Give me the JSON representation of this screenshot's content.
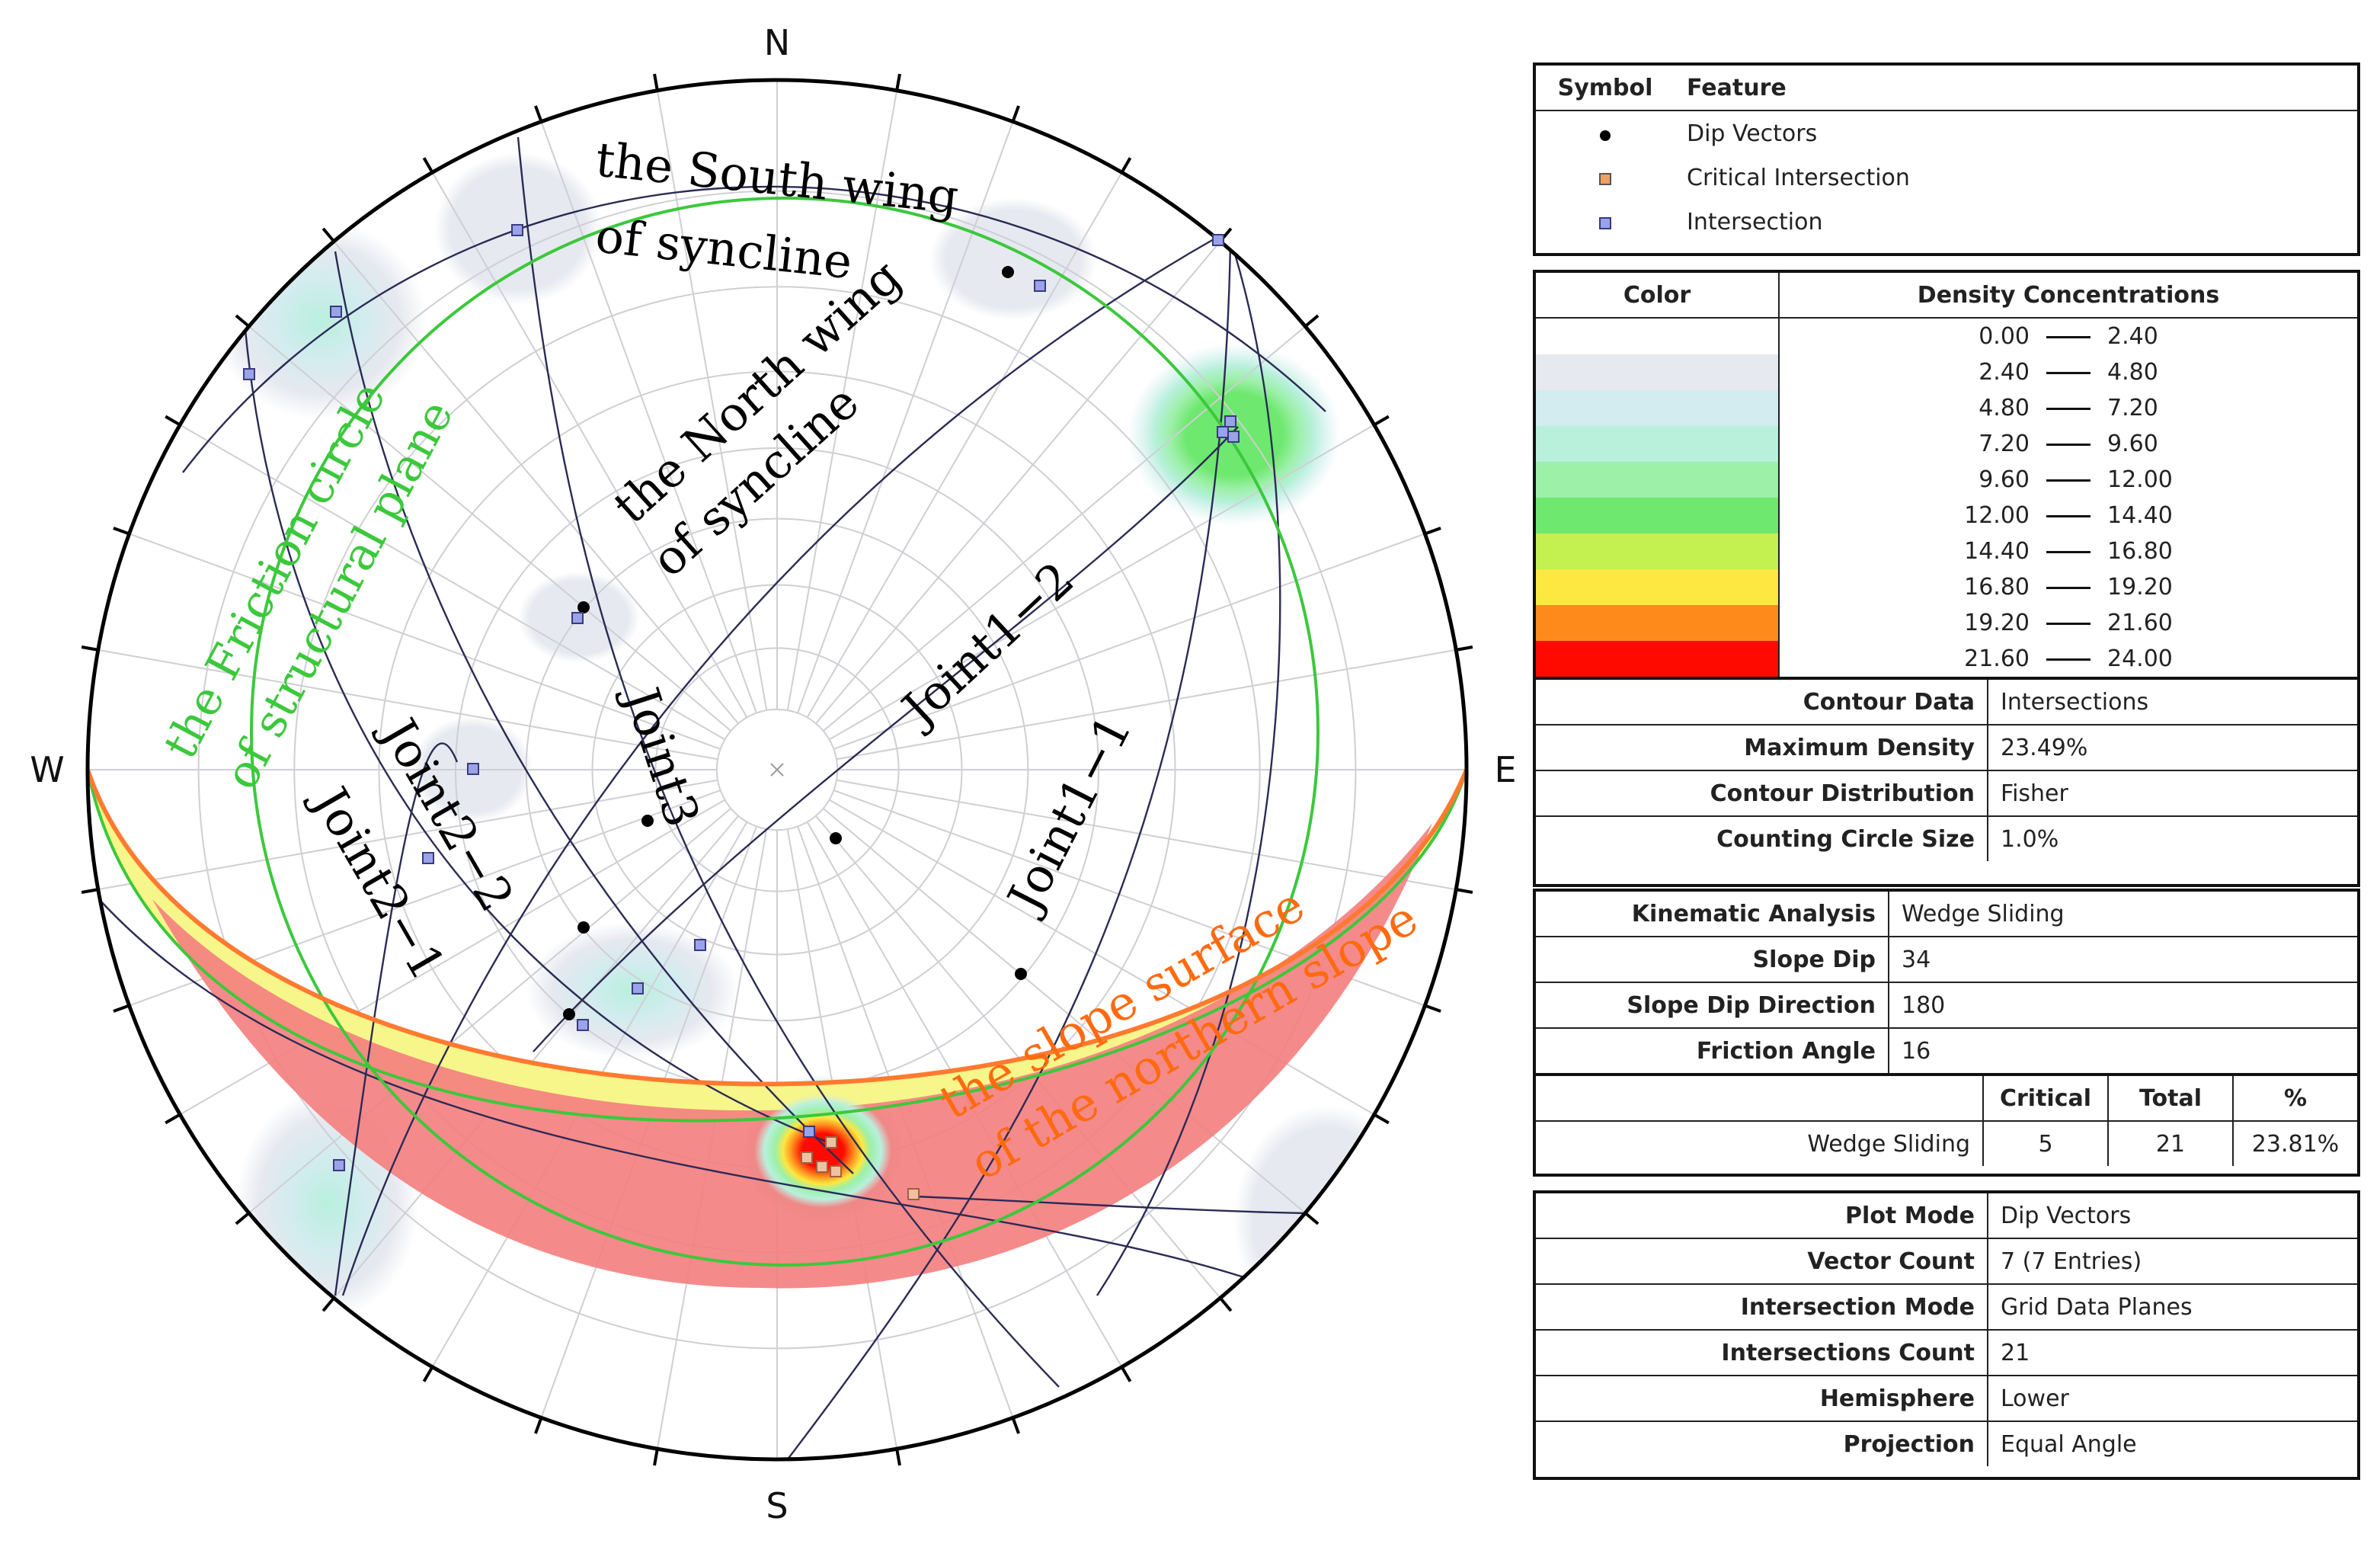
{
  "compass": {
    "north": "N",
    "south": "S",
    "west": "W",
    "east": "E"
  },
  "annotations": {
    "south_wing_line1": "the South wing",
    "south_wing_line2": "of syncline",
    "north_wing_line1": "the North wing",
    "north_wing_line2": "of syncline",
    "friction_line1": "the Friction circle",
    "friction_line2": "of structural plane",
    "joint1_2": "Joint1−2",
    "joint1_1": "Joint1−1",
    "joint3": "Joint3",
    "joint2_2": "Joint2−2",
    "joint2_1": "Joint2−1",
    "slope_line1": "the slope surface",
    "slope_line2": "of the northern slope"
  },
  "colors": {
    "great_circle": "#2b2b55",
    "friction_circle": "#3cc83c",
    "slope_outline": "#ff7a30",
    "critical_zone": "#f48080",
    "friction_band": "#f6f68a",
    "intersection": "#9aa3e8",
    "critical_intersection": "#f0a060",
    "annotation_green": "#3cc83c",
    "annotation_orange": "#ff6a10"
  },
  "legend": {
    "header_symbol": "Symbol",
    "header_feature": "Feature",
    "items": [
      {
        "icon": "dip-vector-dot",
        "label": "Dip Vectors"
      },
      {
        "icon": "critical-intersection-square",
        "label": "Critical Intersection"
      },
      {
        "icon": "intersection-square",
        "label": "Intersection"
      }
    ]
  },
  "density": {
    "header_color": "Color",
    "header_conc": "Density Concentrations",
    "rows": [
      {
        "from": "0.00",
        "to": "2.40",
        "color": "#ffffff"
      },
      {
        "from": "2.40",
        "to": "4.80",
        "color": "#e6e9ef"
      },
      {
        "from": "4.80",
        "to": "7.20",
        "color": "#d2ecef"
      },
      {
        "from": "7.20",
        "to": "9.60",
        "color": "#b8f0dc"
      },
      {
        "from": "9.60",
        "to": "12.00",
        "color": "#9cf0a8"
      },
      {
        "from": "12.00",
        "to": "14.40",
        "color": "#6ee86e"
      },
      {
        "from": "14.40",
        "to": "16.80",
        "color": "#c4f050"
      },
      {
        "from": "16.80",
        "to": "19.20",
        "color": "#fce840"
      },
      {
        "from": "19.20",
        "to": "21.60",
        "color": "#ff8a1c"
      },
      {
        "from": "21.60",
        "to": "24.00",
        "color": "#ff0a00"
      }
    ]
  },
  "contour": [
    {
      "label": "Contour Data",
      "value": "Intersections"
    },
    {
      "label": "Maximum Density",
      "value": "23.49%"
    },
    {
      "label": "Contour Distribution",
      "value": "Fisher"
    },
    {
      "label": "Counting Circle Size",
      "value": "1.0%"
    }
  ],
  "kinematic": [
    {
      "label": "Kinematic Analysis",
      "value": "Wedge Sliding"
    },
    {
      "label": "Slope Dip",
      "value": "34"
    },
    {
      "label": "Slope Dip Direction",
      "value": "180"
    },
    {
      "label": "Friction Angle",
      "value": "16"
    }
  ],
  "summary": {
    "headers": [
      "Critical",
      "Total",
      "%"
    ],
    "row_label": "Wedge Sliding",
    "values": [
      "5",
      "21",
      "23.81%"
    ]
  },
  "plot": [
    {
      "label": "Plot Mode",
      "value": "Dip Vectors"
    },
    {
      "label": "Vector Count",
      "value": "7 (7 Entries)"
    },
    {
      "label": "Intersection Mode",
      "value": "Grid Data Planes"
    },
    {
      "label": "Intersections Count",
      "value": "21"
    },
    {
      "label": "Hemisphere",
      "value": "Lower"
    },
    {
      "label": "Projection",
      "value": "Equal Angle"
    }
  ]
}
